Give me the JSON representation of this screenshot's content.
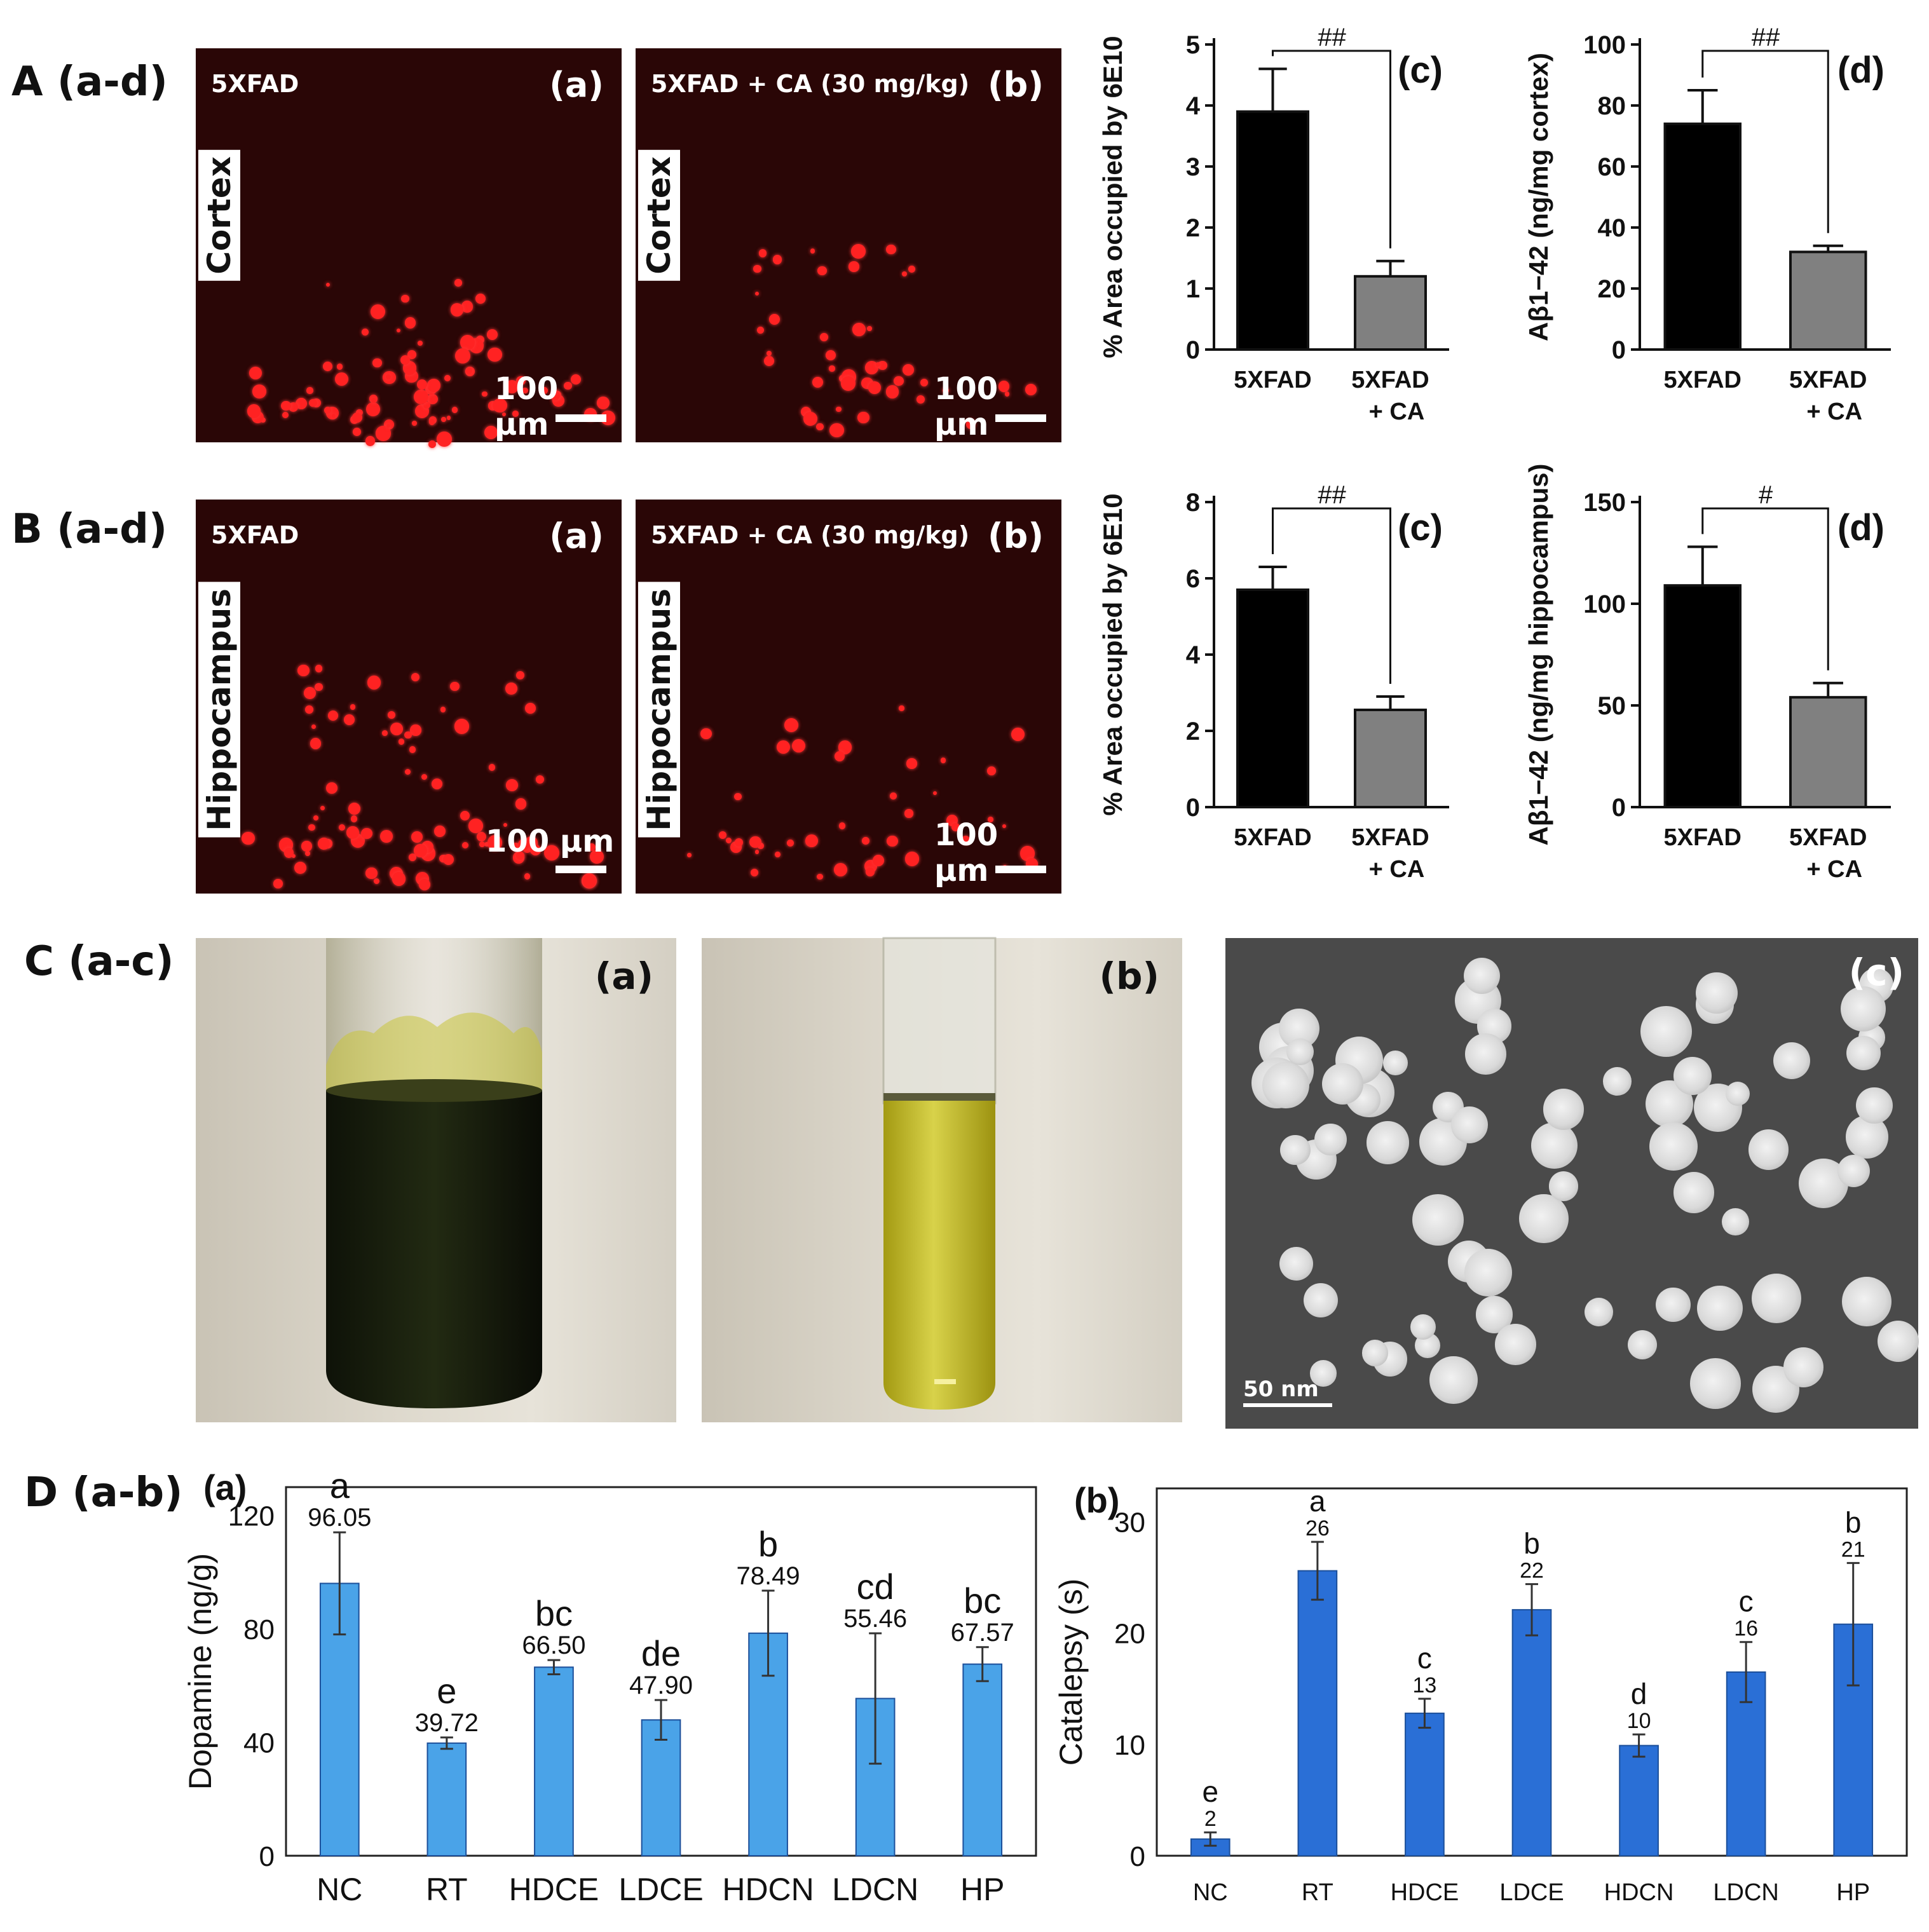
{
  "rows": {
    "A": "A (a-d)",
    "B": "B (a-d)",
    "C": "C (a-c)",
    "D": "D (a-b)"
  },
  "micro": {
    "A_a": {
      "letter": "(a)",
      "group": "5XFAD",
      "region": "Cortex",
      "scale": "100 μm"
    },
    "A_b": {
      "letter": "(b)",
      "group": "5XFAD + CA (30 mg/kg)",
      "region": "Cortex",
      "scale": "100 μm"
    },
    "B_a": {
      "letter": "(a)",
      "group": "5XFAD",
      "region": "Hippocampus",
      "scale": "100 μm"
    },
    "B_b": {
      "letter": "(b)",
      "group": "5XFAD + CA (30 mg/kg)",
      "region": "Hippocampus",
      "scale": "100 μm"
    }
  },
  "photos": {
    "C_a": {
      "letter": "(a)"
    },
    "C_b": {
      "letter": "(b)"
    },
    "C_c": {
      "letter": "(c)",
      "scale": "50 nm"
    }
  },
  "chart_data": [
    {
      "id": "A_c",
      "type": "bar",
      "panel": "(c)",
      "categories": [
        "5XFAD",
        "5XFAD\n+ CA"
      ],
      "values": [
        3.9,
        1.2
      ],
      "errors": [
        0.7,
        0.25
      ],
      "ylabel": "% Area occupied by 6E10",
      "ylim": [
        0,
        5
      ],
      "yticks": [
        0,
        1,
        2,
        3,
        4,
        5
      ],
      "significance": "##",
      "colors": [
        "#000000",
        "#808080"
      ]
    },
    {
      "id": "A_d",
      "type": "bar",
      "panel": "(d)",
      "categories": [
        "5XFAD",
        "5XFAD\n+ CA"
      ],
      "values": [
        74,
        32
      ],
      "errors": [
        11,
        2
      ],
      "ylabel": "Aβ1−42 (ng/mg cortex)",
      "ylim": [
        0,
        100
      ],
      "yticks": [
        0,
        20,
        40,
        60,
        80,
        100
      ],
      "significance": "##",
      "colors": [
        "#000000",
        "#808080"
      ]
    },
    {
      "id": "B_c",
      "type": "bar",
      "panel": "(c)",
      "categories": [
        "5XFAD",
        "5XFAD\n+ CA"
      ],
      "values": [
        5.7,
        2.55
      ],
      "errors": [
        0.6,
        0.35
      ],
      "ylabel": "% Area occupied by 6E10",
      "ylim": [
        0,
        8
      ],
      "yticks": [
        0,
        2,
        4,
        6,
        8
      ],
      "significance": "##",
      "colors": [
        "#000000",
        "#808080"
      ]
    },
    {
      "id": "B_d",
      "type": "bar",
      "panel": "(d)",
      "categories": [
        "5XFAD",
        "5XFAD\n+ CA"
      ],
      "values": [
        109,
        54
      ],
      "errors": [
        19,
        7
      ],
      "ylabel": "Aβ1−42 (ng/mg hippocampus)",
      "ylim": [
        0,
        150
      ],
      "yticks": [
        0,
        50,
        100,
        150
      ],
      "significance": "#",
      "colors": [
        "#000000",
        "#808080"
      ]
    },
    {
      "id": "D_a",
      "type": "bar",
      "panel": "(a)",
      "categories": [
        "NC",
        "RT",
        "HDCE",
        "LDCE",
        "HDCN",
        "LDCN",
        "HP"
      ],
      "values": [
        96.05,
        39.72,
        66.5,
        47.9,
        78.49,
        55.46,
        67.57
      ],
      "value_labels": [
        "96.05",
        "39.72",
        "66.50",
        "47.90",
        "78.49",
        "55.46",
        "67.57"
      ],
      "letters": [
        "a",
        "e",
        "bc",
        "de",
        "b",
        "cd",
        "bc"
      ],
      "errors": [
        18,
        2,
        2.5,
        7,
        15,
        23,
        6
      ],
      "ylabel": "Dopamine (ng/g)",
      "ylim": [
        0,
        130
      ],
      "yticks": [
        0,
        40,
        80,
        120
      ],
      "color": "#4aa3e8"
    },
    {
      "id": "D_b",
      "type": "bar",
      "panel": "(b)",
      "categories": [
        "NC",
        "RT",
        "HDCE",
        "LDCE",
        "HDCN",
        "LDCN",
        "HP"
      ],
      "values": [
        1.5,
        25.6,
        12.8,
        22.1,
        9.9,
        16.5,
        20.8
      ],
      "value_labels": [
        "2",
        "26",
        "13",
        "22",
        "10",
        "16",
        "21"
      ],
      "letters": [
        "e",
        "a",
        "c",
        "b",
        "d",
        "c",
        "b"
      ],
      "errors": [
        0.6,
        2.6,
        1.3,
        2.3,
        1.0,
        2.7,
        5.5
      ],
      "ylabel": "Catalepsy (s)",
      "ylim": [
        0,
        33
      ],
      "yticks": [
        0,
        10,
        20,
        30
      ],
      "color": "#2a6fd6"
    }
  ]
}
